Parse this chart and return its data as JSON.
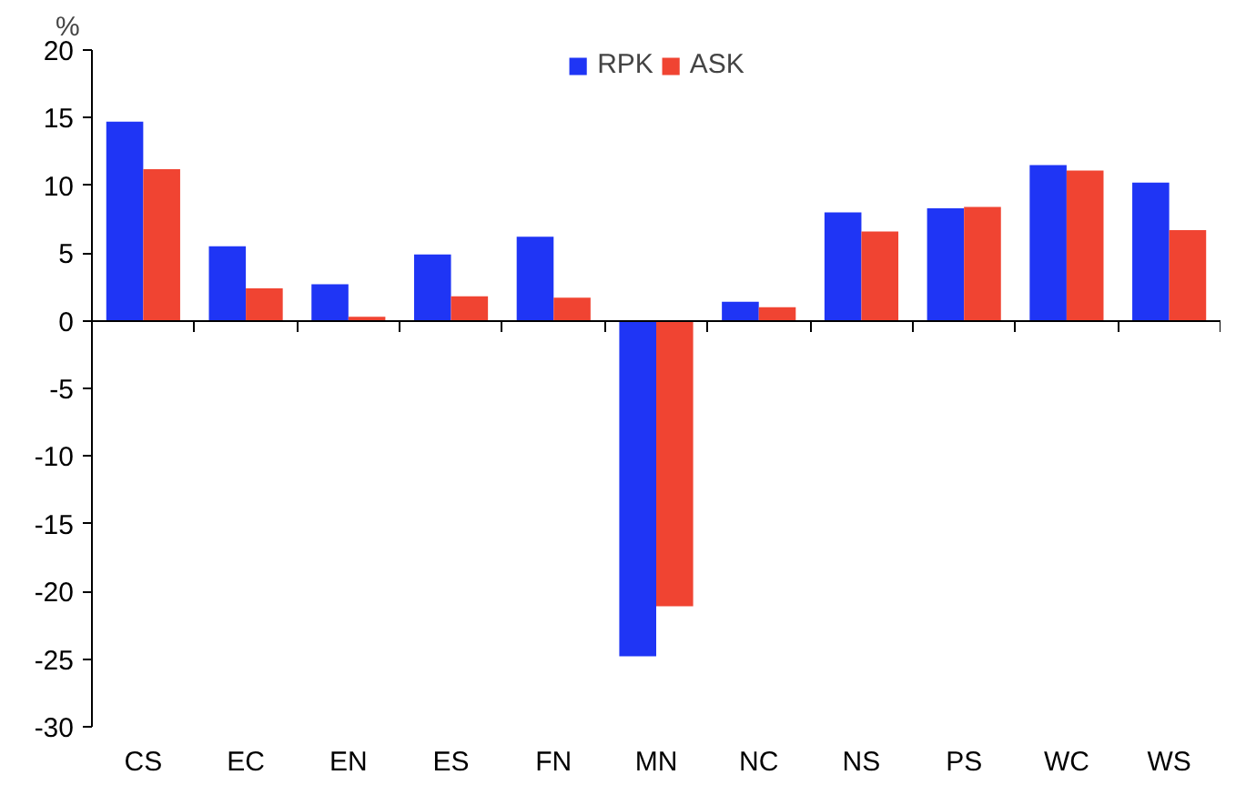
{
  "chart_data": {
    "type": "bar",
    "ylabel": "%",
    "categories": [
      "CS",
      "EC",
      "EN",
      "ES",
      "FN",
      "MN",
      "NC",
      "NS",
      "PS",
      "WC",
      "WS"
    ],
    "series": [
      {
        "name": "RPK",
        "color": "#1f35f5",
        "values": [
          14.7,
          5.5,
          2.7,
          4.9,
          6.2,
          -24.8,
          1.4,
          8.0,
          8.3,
          11.5,
          10.2
        ]
      },
      {
        "name": "ASK",
        "color": "#f04432",
        "values": [
          11.2,
          2.4,
          0.3,
          1.8,
          1.7,
          -21.1,
          1.0,
          6.6,
          8.4,
          11.1,
          6.7
        ]
      }
    ],
    "ylim": [
      -30,
      20
    ],
    "yticks": [
      -30,
      -25,
      -20,
      -15,
      -10,
      -5,
      0,
      5,
      10,
      15,
      20
    ],
    "legend": "top"
  }
}
